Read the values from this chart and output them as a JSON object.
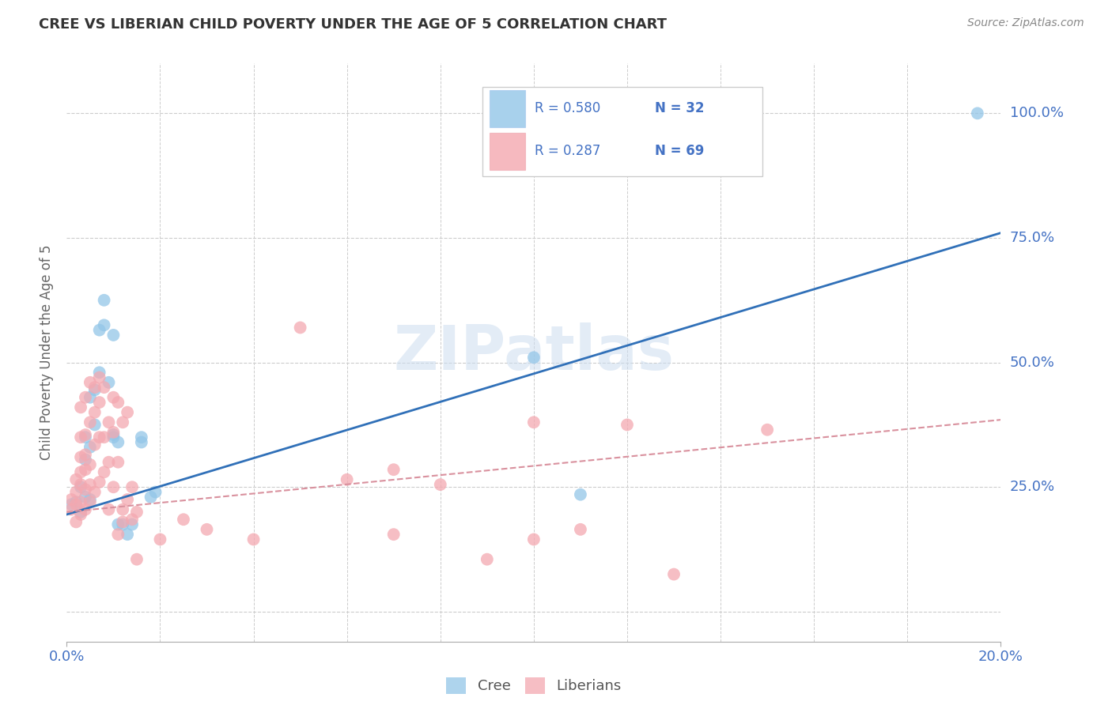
{
  "title": "CREE VS LIBERIAN CHILD POVERTY UNDER THE AGE OF 5 CORRELATION CHART",
  "source": "Source: ZipAtlas.com",
  "ylabel": "Child Poverty Under the Age of 5",
  "xlim": [
    0.0,
    0.2
  ],
  "ylim": [
    -0.06,
    1.1
  ],
  "ytick_positions": [
    0.0,
    0.25,
    0.5,
    0.75,
    1.0
  ],
  "ytick_labels": [
    "",
    "25.0%",
    "50.0%",
    "75.0%",
    "100.0%"
  ],
  "cree_color": "#93c6e8",
  "liberian_color": "#f4a8b0",
  "cree_line_color": "#3070b8",
  "liberian_line_color": "#d9919e",
  "background_color": "#ffffff",
  "grid_color": "#cccccc",
  "legend_R_cree": "R = 0.580",
  "legend_N_cree": "N = 32",
  "legend_R_liberian": "R = 0.287",
  "legend_N_liberian": "N = 69",
  "watermark": "ZIPatlas",
  "tick_label_color": "#4472c4",
  "cree_points": [
    [
      0.001,
      0.215
    ],
    [
      0.002,
      0.22
    ],
    [
      0.003,
      0.2
    ],
    [
      0.003,
      0.25
    ],
    [
      0.004,
      0.23
    ],
    [
      0.004,
      0.305
    ],
    [
      0.004,
      0.35
    ],
    [
      0.005,
      0.225
    ],
    [
      0.005,
      0.43
    ],
    [
      0.005,
      0.33
    ],
    [
      0.006,
      0.445
    ],
    [
      0.006,
      0.375
    ],
    [
      0.007,
      0.48
    ],
    [
      0.007,
      0.565
    ],
    [
      0.008,
      0.575
    ],
    [
      0.008,
      0.625
    ],
    [
      0.009,
      0.46
    ],
    [
      0.01,
      0.555
    ],
    [
      0.01,
      0.355
    ],
    [
      0.01,
      0.35
    ],
    [
      0.011,
      0.34
    ],
    [
      0.011,
      0.175
    ],
    [
      0.012,
      0.175
    ],
    [
      0.013,
      0.155
    ],
    [
      0.014,
      0.175
    ],
    [
      0.016,
      0.34
    ],
    [
      0.016,
      0.35
    ],
    [
      0.018,
      0.23
    ],
    [
      0.019,
      0.24
    ],
    [
      0.1,
      0.51
    ],
    [
      0.11,
      0.235
    ],
    [
      0.195,
      1.0
    ]
  ],
  "liberian_points": [
    [
      0.001,
      0.205
    ],
    [
      0.001,
      0.225
    ],
    [
      0.002,
      0.18
    ],
    [
      0.002,
      0.215
    ],
    [
      0.002,
      0.24
    ],
    [
      0.002,
      0.265
    ],
    [
      0.003,
      0.195
    ],
    [
      0.003,
      0.22
    ],
    [
      0.003,
      0.255
    ],
    [
      0.003,
      0.28
    ],
    [
      0.003,
      0.31
    ],
    [
      0.003,
      0.35
    ],
    [
      0.003,
      0.41
    ],
    [
      0.004,
      0.205
    ],
    [
      0.004,
      0.245
    ],
    [
      0.004,
      0.285
    ],
    [
      0.004,
      0.315
    ],
    [
      0.004,
      0.355
    ],
    [
      0.004,
      0.43
    ],
    [
      0.005,
      0.22
    ],
    [
      0.005,
      0.255
    ],
    [
      0.005,
      0.295
    ],
    [
      0.005,
      0.38
    ],
    [
      0.005,
      0.46
    ],
    [
      0.006,
      0.24
    ],
    [
      0.006,
      0.335
    ],
    [
      0.006,
      0.4
    ],
    [
      0.006,
      0.45
    ],
    [
      0.007,
      0.26
    ],
    [
      0.007,
      0.35
    ],
    [
      0.007,
      0.42
    ],
    [
      0.007,
      0.47
    ],
    [
      0.008,
      0.28
    ],
    [
      0.008,
      0.35
    ],
    [
      0.008,
      0.45
    ],
    [
      0.009,
      0.205
    ],
    [
      0.009,
      0.3
    ],
    [
      0.009,
      0.38
    ],
    [
      0.01,
      0.25
    ],
    [
      0.01,
      0.36
    ],
    [
      0.01,
      0.43
    ],
    [
      0.011,
      0.155
    ],
    [
      0.011,
      0.3
    ],
    [
      0.011,
      0.42
    ],
    [
      0.012,
      0.18
    ],
    [
      0.012,
      0.205
    ],
    [
      0.012,
      0.38
    ],
    [
      0.013,
      0.225
    ],
    [
      0.013,
      0.4
    ],
    [
      0.014,
      0.25
    ],
    [
      0.014,
      0.185
    ],
    [
      0.015,
      0.105
    ],
    [
      0.015,
      0.2
    ],
    [
      0.02,
      0.145
    ],
    [
      0.025,
      0.185
    ],
    [
      0.03,
      0.165
    ],
    [
      0.04,
      0.145
    ],
    [
      0.05,
      0.57
    ],
    [
      0.06,
      0.265
    ],
    [
      0.07,
      0.285
    ],
    [
      0.07,
      0.155
    ],
    [
      0.08,
      0.255
    ],
    [
      0.09,
      0.105
    ],
    [
      0.1,
      0.145
    ],
    [
      0.1,
      0.38
    ],
    [
      0.11,
      0.165
    ],
    [
      0.12,
      0.375
    ],
    [
      0.13,
      0.075
    ],
    [
      0.15,
      0.365
    ]
  ],
  "cree_line_x": [
    0.0,
    0.2
  ],
  "cree_line_y": [
    0.195,
    0.76
  ],
  "liberian_line_x": [
    0.0,
    0.2
  ],
  "liberian_line_y": [
    0.2,
    0.385
  ]
}
